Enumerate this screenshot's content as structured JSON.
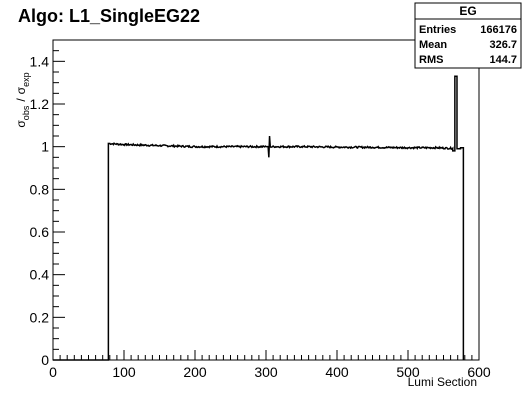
{
  "chart_data": {
    "type": "line",
    "title": "Algo: L1_SingleEG22",
    "xlabel": "Lumi Section",
    "ylabel": {
      "main": "σ",
      "sub_obs": "obs",
      "sep": "/",
      "main2": "σ",
      "sub_exp": "exp"
    },
    "xlim": [
      0,
      600
    ],
    "ylim": [
      0,
      1.5
    ],
    "x_ticks": [
      0,
      100,
      200,
      300,
      400,
      500,
      600
    ],
    "x_tick_labels": [
      "0",
      "100",
      "200",
      "300",
      "400",
      "500",
      "600"
    ],
    "y_ticks": [
      0,
      0.2,
      0.4,
      0.6,
      0.8,
      1,
      1.2,
      1.4
    ],
    "y_tick_labels": [
      "0",
      "0.2",
      "0.4",
      "0.6",
      "0.8",
      "1",
      "1.2",
      "1.4"
    ],
    "series": [
      {
        "style": "step",
        "points": [
          [
            0,
            0
          ],
          [
            78,
            0
          ],
          [
            78,
            1.015
          ],
          [
            100,
            1.01
          ],
          [
            150,
            1.005
          ],
          [
            200,
            1.0
          ],
          [
            250,
            1.0
          ],
          [
            300,
            1.0
          ],
          [
            303,
            1.0
          ],
          [
            304,
            0.95
          ],
          [
            305,
            1.05
          ],
          [
            306,
            1.0
          ],
          [
            350,
            1.0
          ],
          [
            400,
            0.998
          ],
          [
            450,
            0.997
          ],
          [
            500,
            0.995
          ],
          [
            540,
            0.995
          ],
          [
            563,
            0.992
          ],
          [
            563,
            0.98
          ],
          [
            566,
            0.98
          ],
          [
            566,
            1.33
          ],
          [
            569,
            1.33
          ],
          [
            569,
            0.99
          ],
          [
            574,
            0.99
          ],
          [
            574,
            0.995
          ],
          [
            578,
            0.995
          ],
          [
            578,
            0
          ]
        ]
      }
    ],
    "stats_box": {
      "title": "EG",
      "rows": [
        {
          "label": "Entries",
          "value": "166176"
        },
        {
          "label": "Mean",
          "value": "326.7"
        },
        {
          "label": "RMS",
          "value": "144.7"
        }
      ]
    },
    "grid": false,
    "line_color": "#000000"
  }
}
